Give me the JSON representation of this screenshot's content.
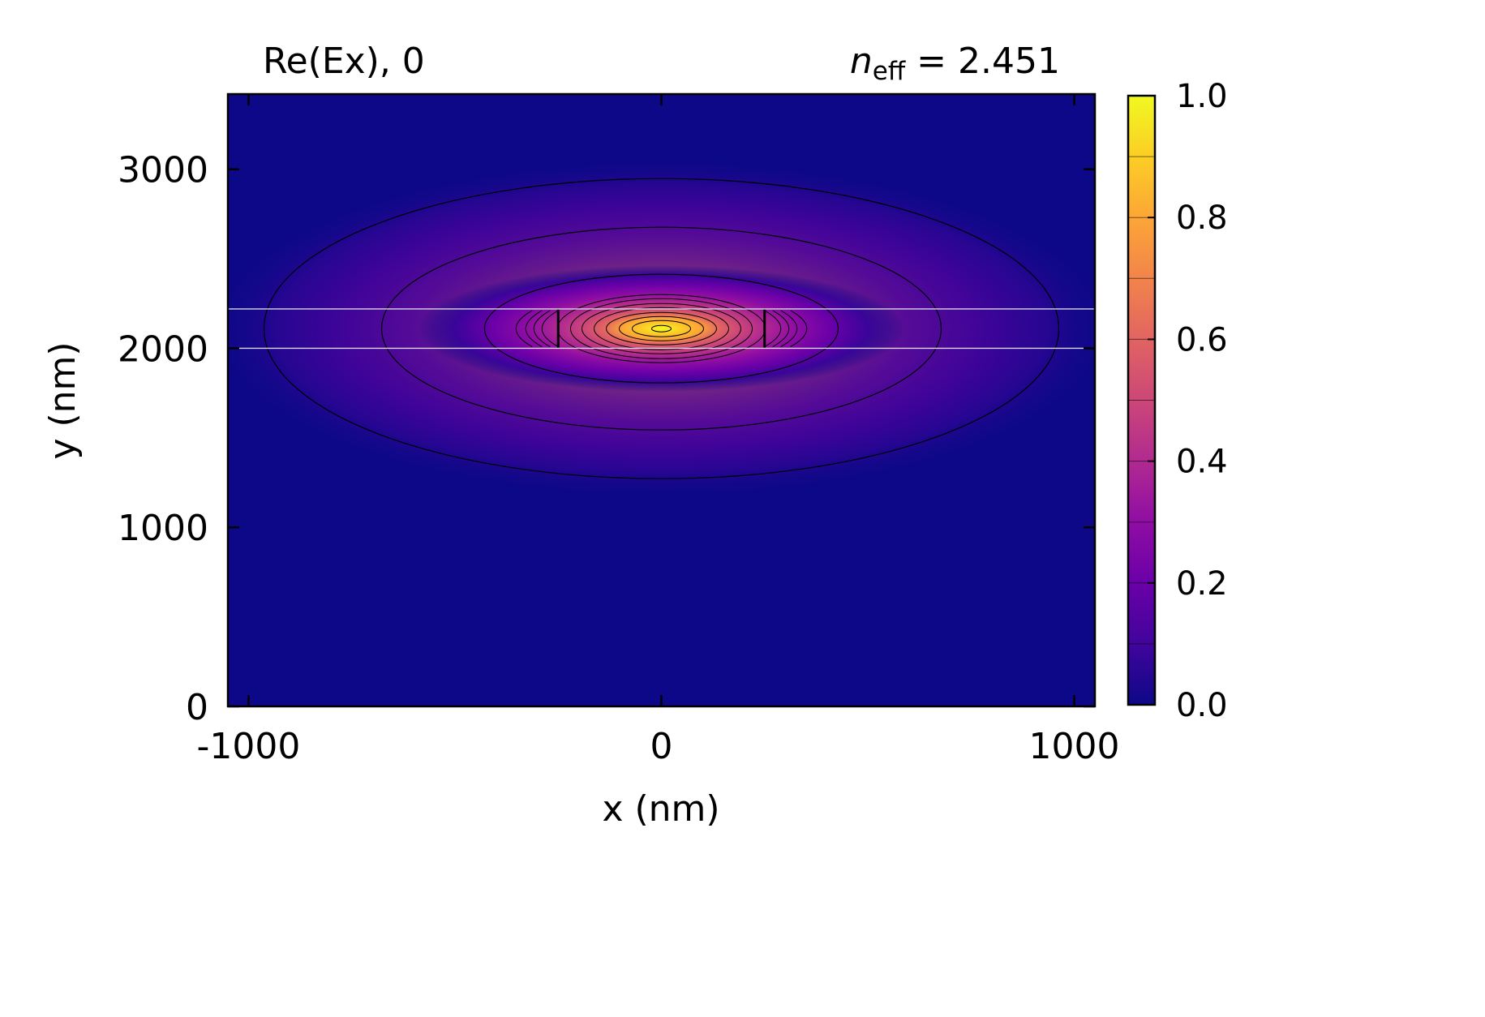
{
  "chart_data": {
    "type": "heatmap",
    "title_left": "Re(Ex), 0",
    "title_right": {
      "symbol": "n",
      "subscript": "eff",
      "rest": " = 2.451"
    },
    "xlabel": "x (nm)",
    "ylabel": "y (nm)",
    "xlim": [
      -1050,
      1050
    ],
    "ylim": [
      0,
      3420
    ],
    "x_ticks": [
      {
        "value": -1000,
        "label": "-1000"
      },
      {
        "value": 0,
        "label": "0"
      },
      {
        "value": 1000,
        "label": "1000"
      }
    ],
    "y_ticks": [
      {
        "value": 0,
        "label": "0"
      },
      {
        "value": 1000,
        "label": "1000"
      },
      {
        "value": 2000,
        "label": "2000"
      },
      {
        "value": 3000,
        "label": "3000"
      }
    ],
    "colormap": "plasma",
    "colorbar": {
      "range": [
        0.0,
        1.0
      ],
      "ticks": [
        {
          "value": 0.0,
          "label": "0.0"
        },
        {
          "value": 0.2,
          "label": "0.2"
        },
        {
          "value": 0.4,
          "label": "0.4"
        },
        {
          "value": 0.6,
          "label": "0.6"
        },
        {
          "value": 0.8,
          "label": "0.8"
        },
        {
          "value": 1.0,
          "label": "1.0"
        }
      ]
    },
    "waveguide_core": {
      "x_range": [
        -250,
        250
      ],
      "y_range": [
        2000,
        2220
      ]
    },
    "field_peak": {
      "x": 0,
      "y": 2110,
      "value": 1.0
    },
    "grid": false,
    "legend": "none"
  },
  "colors": {
    "background_field": "#0d0887",
    "contour": "#000000",
    "core_outline": "#d8d8e8"
  }
}
